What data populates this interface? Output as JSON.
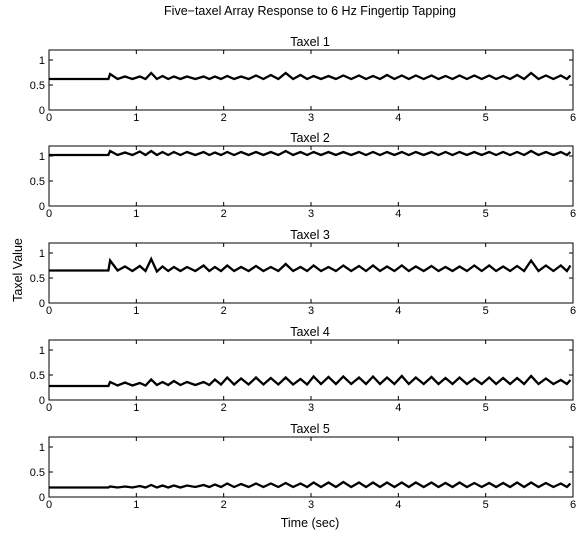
{
  "chart_data": {
    "type": "line",
    "title": "Five−taxel Array Response to 6 Hz Fingertip Tapping",
    "xlabel": "Time (sec)",
    "ylabel": "Taxel Value",
    "xlim": [
      0,
      6
    ],
    "x_ticks": [
      "0",
      "1",
      "2",
      "3",
      "4",
      "5",
      "6"
    ],
    "grid": false,
    "baseline_until": 0.68,
    "tap_times": [
      0.7,
      0.87,
      1.04,
      1.17,
      1.3,
      1.43,
      1.58,
      1.77,
      1.9,
      2.04,
      2.2,
      2.37,
      2.54,
      2.71,
      2.88,
      3.03,
      3.2,
      3.37,
      3.55,
      3.71,
      3.87,
      4.04,
      4.2,
      4.38,
      4.54,
      4.7,
      4.87,
      5.04,
      5.2,
      5.36,
      5.52,
      5.69,
      5.86
    ],
    "panels": [
      {
        "subtitle": "Taxel 1",
        "ylim": [
          0,
          1.2
        ],
        "y_ticks": [
          "0",
          "0.5",
          "1"
        ],
        "baseline": 0.62,
        "peaks": [
          0.72,
          0.67,
          0.67,
          0.74,
          0.68,
          0.67,
          0.67,
          0.67,
          0.67,
          0.68,
          0.67,
          0.69,
          0.7,
          0.74,
          0.7,
          0.68,
          0.68,
          0.69,
          0.69,
          0.68,
          0.7,
          0.69,
          0.69,
          0.69,
          0.68,
          0.69,
          0.69,
          0.69,
          0.68,
          0.7,
          0.74,
          0.69,
          0.69
        ],
        "troughs": [
          0.62,
          0.62,
          0.62,
          0.62,
          0.62,
          0.62,
          0.62,
          0.62,
          0.62,
          0.62,
          0.62,
          0.62,
          0.62,
          0.62,
          0.62,
          0.62,
          0.62,
          0.62,
          0.62,
          0.62,
          0.62,
          0.62,
          0.62,
          0.62,
          0.62,
          0.62,
          0.62,
          0.62,
          0.62,
          0.62,
          0.62,
          0.62,
          0.62
        ]
      },
      {
        "subtitle": "Taxel 2",
        "ylim": [
          0,
          1.2
        ],
        "y_ticks": [
          "0",
          "0.5",
          "1"
        ],
        "baseline": 1.02,
        "peaks": [
          1.1,
          1.07,
          1.09,
          1.1,
          1.08,
          1.08,
          1.08,
          1.08,
          1.07,
          1.08,
          1.08,
          1.08,
          1.08,
          1.1,
          1.08,
          1.08,
          1.08,
          1.08,
          1.08,
          1.08,
          1.08,
          1.08,
          1.08,
          1.08,
          1.08,
          1.08,
          1.08,
          1.08,
          1.08,
          1.08,
          1.1,
          1.08,
          1.08
        ],
        "troughs": [
          1.02,
          1.02,
          1.02,
          1.02,
          1.02,
          1.02,
          1.02,
          1.02,
          1.02,
          1.02,
          1.02,
          1.02,
          1.02,
          1.02,
          1.02,
          1.02,
          1.02,
          1.02,
          1.02,
          1.02,
          1.02,
          1.02,
          1.02,
          1.02,
          1.02,
          1.02,
          1.02,
          1.02,
          1.02,
          1.02,
          1.02,
          1.02,
          1.02
        ]
      },
      {
        "subtitle": "Taxel 3",
        "ylim": [
          0,
          1.2
        ],
        "y_ticks": [
          "0",
          "0.5",
          "1"
        ],
        "baseline": 0.65,
        "peaks": [
          0.85,
          0.73,
          0.74,
          0.88,
          0.73,
          0.72,
          0.72,
          0.75,
          0.72,
          0.75,
          0.72,
          0.74,
          0.72,
          0.78,
          0.72,
          0.75,
          0.72,
          0.75,
          0.74,
          0.75,
          0.73,
          0.75,
          0.73,
          0.74,
          0.72,
          0.73,
          0.75,
          0.75,
          0.73,
          0.74,
          0.85,
          0.75,
          0.75
        ],
        "troughs": [
          0.65,
          0.64,
          0.64,
          0.63,
          0.64,
          0.64,
          0.64,
          0.64,
          0.64,
          0.64,
          0.64,
          0.64,
          0.64,
          0.64,
          0.64,
          0.64,
          0.64,
          0.64,
          0.64,
          0.64,
          0.64,
          0.64,
          0.64,
          0.64,
          0.64,
          0.64,
          0.64,
          0.64,
          0.64,
          0.64,
          0.64,
          0.64,
          0.64
        ]
      },
      {
        "subtitle": "Taxel 4",
        "ylim": [
          0,
          1.2
        ],
        "y_ticks": [
          "0",
          "0.5",
          "1"
        ],
        "baseline": 0.28,
        "peaks": [
          0.36,
          0.35,
          0.34,
          0.41,
          0.36,
          0.38,
          0.36,
          0.36,
          0.41,
          0.45,
          0.43,
          0.45,
          0.44,
          0.45,
          0.42,
          0.47,
          0.46,
          0.47,
          0.45,
          0.47,
          0.45,
          0.48,
          0.45,
          0.46,
          0.44,
          0.45,
          0.43,
          0.45,
          0.44,
          0.44,
          0.48,
          0.43,
          0.4
        ],
        "troughs": [
          0.29,
          0.29,
          0.29,
          0.3,
          0.3,
          0.3,
          0.3,
          0.3,
          0.31,
          0.31,
          0.31,
          0.31,
          0.31,
          0.31,
          0.31,
          0.32,
          0.32,
          0.32,
          0.32,
          0.32,
          0.32,
          0.32,
          0.32,
          0.32,
          0.32,
          0.32,
          0.32,
          0.32,
          0.32,
          0.32,
          0.32,
          0.32,
          0.32
        ]
      },
      {
        "subtitle": "Taxel 5",
        "ylim": [
          0,
          1.2
        ],
        "y_ticks": [
          "0",
          "0.5",
          "1"
        ],
        "baseline": 0.19,
        "peaks": [
          0.21,
          0.21,
          0.22,
          0.24,
          0.23,
          0.23,
          0.23,
          0.24,
          0.25,
          0.27,
          0.26,
          0.27,
          0.27,
          0.28,
          0.27,
          0.29,
          0.29,
          0.3,
          0.29,
          0.29,
          0.29,
          0.29,
          0.29,
          0.29,
          0.28,
          0.29,
          0.28,
          0.28,
          0.28,
          0.29,
          0.29,
          0.28,
          0.27
        ],
        "troughs": [
          0.19,
          0.19,
          0.19,
          0.19,
          0.19,
          0.19,
          0.2,
          0.2,
          0.2,
          0.2,
          0.2,
          0.2,
          0.2,
          0.2,
          0.2,
          0.2,
          0.2,
          0.2,
          0.2,
          0.2,
          0.2,
          0.2,
          0.2,
          0.2,
          0.2,
          0.2,
          0.2,
          0.2,
          0.2,
          0.2,
          0.2,
          0.2,
          0.2
        ]
      }
    ]
  }
}
